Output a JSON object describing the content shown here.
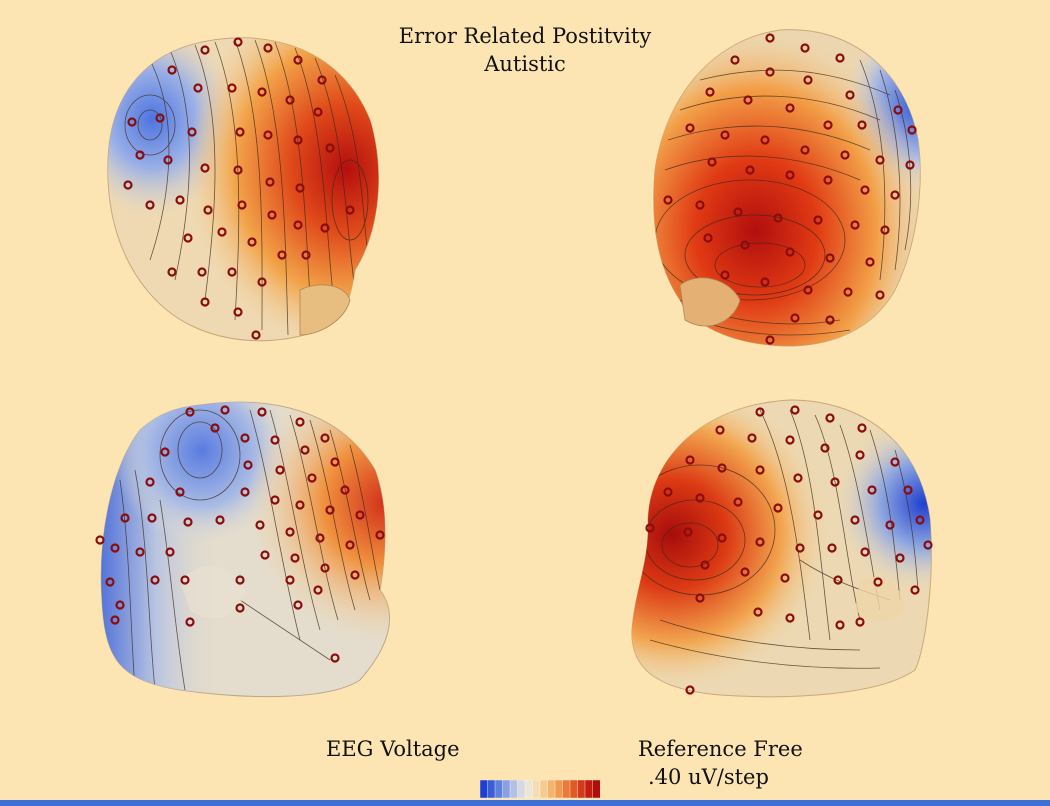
{
  "title": {
    "line1": "Error Related Postitvity",
    "line2": "Autistic"
  },
  "labels": {
    "eeg_voltage": "EEG Voltage",
    "reference": "Reference Free",
    "scale": ".40 uV/step"
  },
  "colors": {
    "background": "#fde4b3",
    "negative": "#2244cc",
    "neutral": "#ece3cf",
    "positive": "#c81212",
    "electrode": "#8a0d0d"
  },
  "views": [
    {
      "name": "top-left-head"
    },
    {
      "name": "top-right-head"
    },
    {
      "name": "bottom-left-head"
    },
    {
      "name": "bottom-right-head"
    }
  ]
}
